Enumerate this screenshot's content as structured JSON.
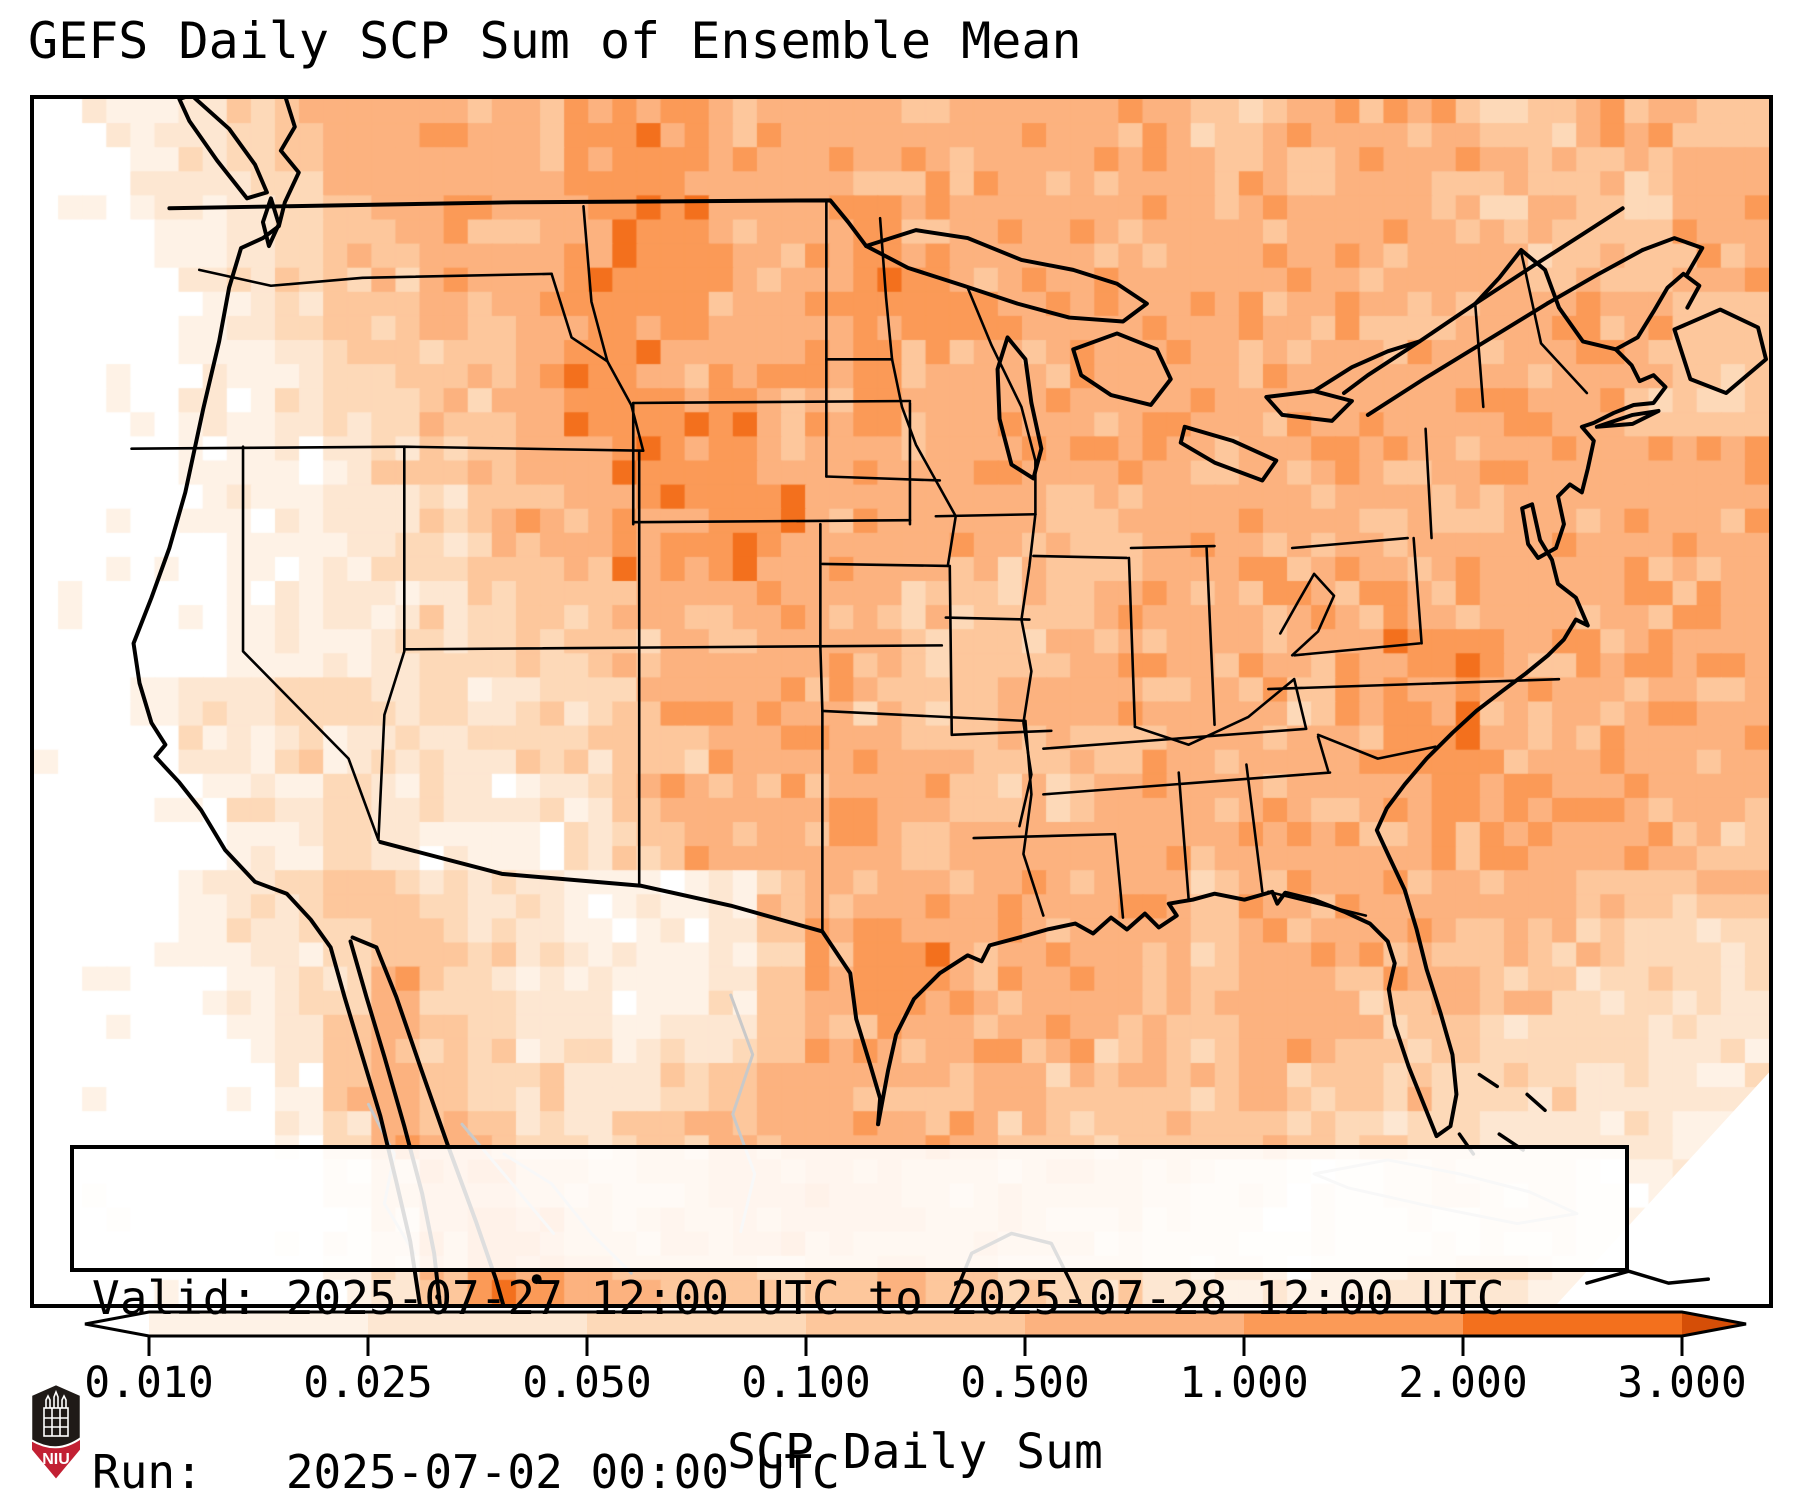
{
  "title": "GEFS Daily SCP Sum of Ensemble Mean",
  "info_box": {
    "line1": "Valid: 2025-07-27 12:00 UTC to 2025-07-28 12:00 UTC",
    "line2": "Run:   2025-07-02 00:00 UTC"
  },
  "colorbar": {
    "label": "SCP Daily Sum",
    "tick_labels": [
      "0.010",
      "0.025",
      "0.050",
      "0.100",
      "0.500",
      "1.000",
      "2.000",
      "3.000"
    ],
    "boundaries": [
      0.01,
      0.025,
      0.05,
      0.1,
      0.5,
      1.0,
      2.0,
      3.0
    ],
    "extend": "both",
    "under_color": "#ffffff",
    "over_color": "#d54e07"
  },
  "palette": [
    "#ffffff",
    "#fef2e6",
    "#fde7d2",
    "#fdd9b8",
    "#fdc79c",
    "#fcb27f",
    "#fb9a57",
    "#f3701d",
    "#d54e07"
  ],
  "map_colors": {
    "coastline": "#000000",
    "state_border": "#000000",
    "water_feature_gray": "#c9c9c9",
    "background": "#ffffff"
  },
  "logo": {
    "text": "NIU",
    "shield_color": "#1f1a17",
    "band_color": "#c22033",
    "outline": "#ffffff"
  },
  "chart_data": {
    "type": "heatmap",
    "title": "GEFS Daily SCP Sum of Ensemble Mean",
    "colorbar_label": "SCP Daily Sum",
    "levels": [
      0.01,
      0.025,
      0.05,
      0.1,
      0.5,
      1.0,
      2.0,
      3.0
    ],
    "colormap": "Oranges (discrete, extended both ends)",
    "valid": "2025-07-27 12:00 UTC to 2025-07-28 12:00 UTC",
    "run": "2025-07-02 00:00 UTC",
    "grid_note": "coarse 36x25 field over the map area; each char 0-8 indexes the 9-color palette (0 = <0.010 white, 5 = 0.5-1.0, 6 = 1-2, 7 = 2-3, 8 = >3)",
    "grid_levels_rows": [
      "011234555556665555555555445555445544",
      "001234555556665555555555554555544455",
      "001123455555665556555555555555454455",
      "000123445556666556655555555555544455",
      "000123445556665556655555555544555544",
      "000112344556655566555555555555555444",
      "000112334456666556555555555555555444",
      "000111234455666555555555555555555555",
      "000111223455566655555455555555555555",
      "000011223445666555554445555555555555",
      "000011223344555655444455555555555555",
      "000011123334455555444555555566555555",
      "001223323233455554445555554666555555",
      "000223232233445555554445555566555555",
      "000122322122455555544455555556655555",
      "000012321112455555555555555555655544",
      "000123443221112455555555455555554444",
      "000122344321112456655555455555544333",
      "000012354322112456655554455455443332",
      "000012454322122455555544455444333222",
      "000001454332234555555444454443332222",
      "000001355433345555554444444333222211",
      "000000245543345555444443221122221111",
      "000000135654455554444332211112221111",
      "000000124665544444443332111122211111"
    ],
    "regions_summary": [
      "Pacific coast states (WA/OR/CA/NV) near zero (<0.010, white)",
      "Broad 0.5-1.0 (medium orange) across Canada, Midwest, Great Lakes and the East",
      "Local 1-2 maxima over MN/IA/WI, Saskatchewan-Manitoba, and offshore of the Carolinas",
      "1-2+ along the Texas Gulf coast near Houston and over NE Mexico",
      "Pale <0.1 over the interior West, central Texas, and the Cuba region"
    ]
  }
}
